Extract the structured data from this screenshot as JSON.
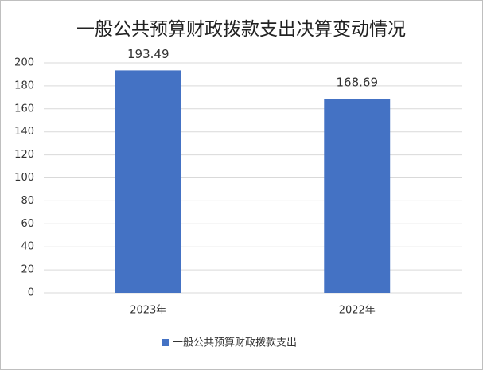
{
  "chart_data": {
    "type": "bar",
    "title": "一般公共预算财政拨款支出决算变动情况",
    "categories": [
      "2023年",
      "2022年"
    ],
    "series": [
      {
        "name": "一般公共预算财政拨款支出",
        "color": "#4472c4",
        "values": [
          193.49,
          168.69
        ]
      }
    ],
    "ylim": [
      0,
      200
    ],
    "yticks": [
      0,
      20,
      40,
      60,
      80,
      100,
      120,
      140,
      160,
      180,
      200
    ],
    "grid": true,
    "legend": "bottom"
  }
}
